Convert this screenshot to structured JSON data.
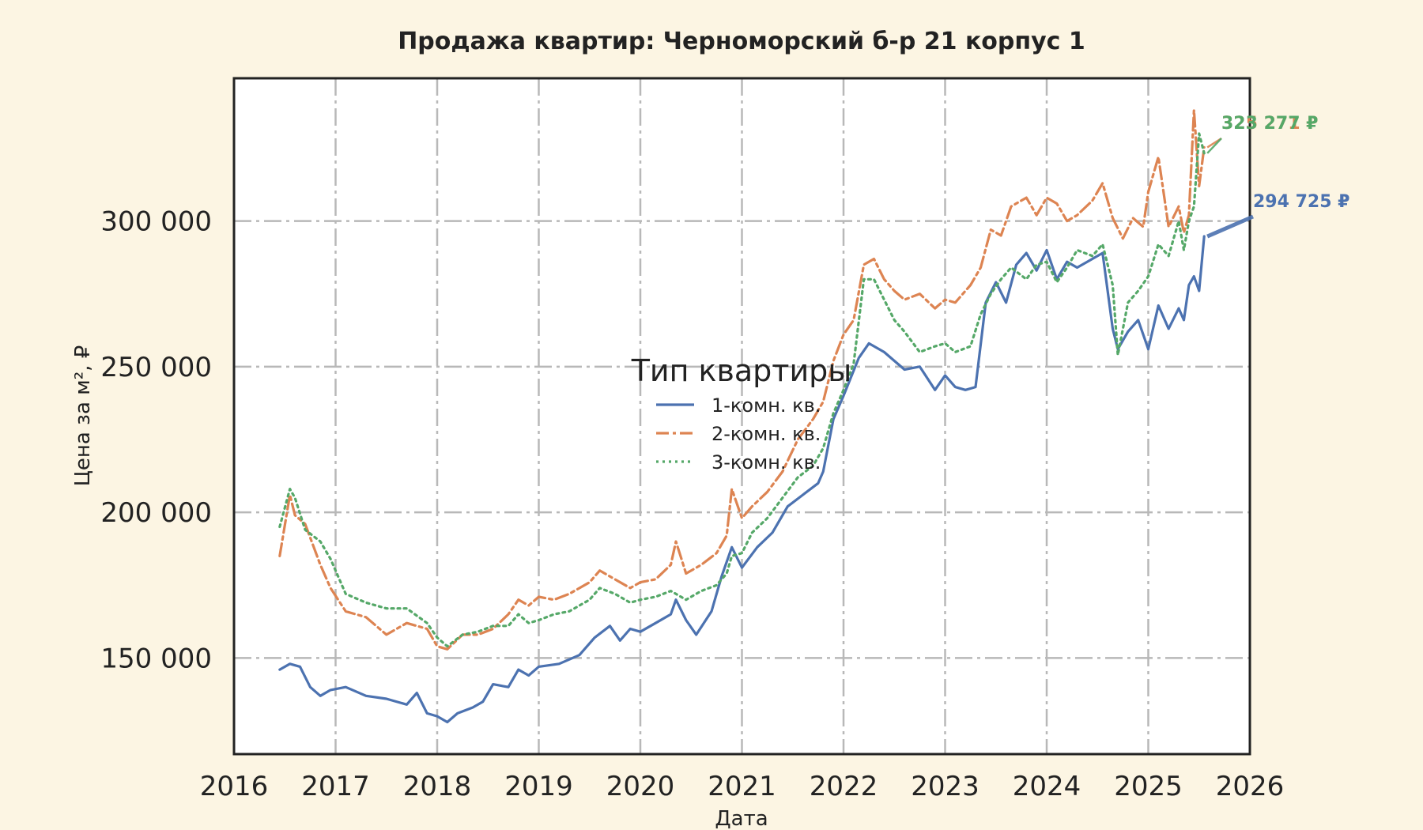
{
  "chart_data": {
    "type": "line",
    "title": "Продажа квартир: Черноморский б-р 21 корпус 1",
    "xlabel": "Дата",
    "ylabel": "Цена за м², ₽",
    "x_ticks": [
      "2016",
      "2017",
      "2018",
      "2019",
      "2020",
      "2021",
      "2022",
      "2023",
      "2024",
      "2025",
      "2026"
    ],
    "y_ticks": [
      "150 000",
      "200 000",
      "250 000",
      "300 000"
    ],
    "xlim": [
      2016,
      2026
    ],
    "ylim": [
      117000,
      349000
    ],
    "grid": true,
    "legend": {
      "title": "Тип квартиры",
      "placement": "center",
      "entries": [
        "1-комн. кв.",
        "2-комн. кв.",
        "3-комн. кв."
      ]
    },
    "series": [
      {
        "name": "1-комн. кв.",
        "color": "#4c72b0",
        "dash": "solid",
        "end_label": "294 725 ₽",
        "x": [
          2016.45,
          2016.55,
          2016.65,
          2016.75,
          2016.85,
          2016.95,
          2017.1,
          2017.3,
          2017.5,
          2017.7,
          2017.8,
          2017.9,
          2018.0,
          2018.1,
          2018.2,
          2018.35,
          2018.45,
          2018.55,
          2018.7,
          2018.8,
          2018.9,
          2019.0,
          2019.2,
          2019.4,
          2019.55,
          2019.7,
          2019.8,
          2019.9,
          2020.0,
          2020.15,
          2020.3,
          2020.35,
          2020.45,
          2020.55,
          2020.7,
          2020.8,
          2020.9,
          2021.0,
          2021.15,
          2021.3,
          2021.45,
          2021.6,
          2021.75,
          2021.8,
          2021.9,
          2022.0,
          2022.15,
          2022.25,
          2022.4,
          2022.5,
          2022.6,
          2022.75,
          2022.9,
          2023.0,
          2023.1,
          2023.2,
          2023.3,
          2023.4,
          2023.5,
          2023.6,
          2023.7,
          2023.8,
          2023.9,
          2024.0,
          2024.1,
          2024.2,
          2024.3,
          2024.45,
          2024.55,
          2024.65,
          2024.7,
          2024.8,
          2024.9,
          2025.0,
          2025.1,
          2025.2,
          2025.3,
          2025.35,
          2025.4,
          2025.45,
          2025.5,
          2025.55
        ],
        "y": [
          146000,
          148000,
          147000,
          140000,
          137000,
          139000,
          140000,
          137000,
          136000,
          134000,
          138000,
          131000,
          130000,
          128000,
          131000,
          133000,
          135000,
          141000,
          140000,
          146000,
          144000,
          147000,
          148000,
          151000,
          157000,
          161000,
          156000,
          160000,
          159000,
          162000,
          165000,
          170000,
          163000,
          158000,
          166000,
          178000,
          188000,
          181000,
          188000,
          193000,
          202000,
          206000,
          210000,
          214000,
          232000,
          240000,
          253000,
          258000,
          255000,
          252000,
          249000,
          250000,
          242000,
          247000,
          243000,
          242000,
          243000,
          272000,
          279000,
          272000,
          285000,
          289000,
          283000,
          290000,
          280000,
          286000,
          284000,
          287000,
          289000,
          263000,
          256000,
          262000,
          266000,
          256000,
          271000,
          263000,
          270000,
          266000,
          278000,
          281000,
          276000,
          294725
        ]
      },
      {
        "name": "2-комн. кв.",
        "color": "#dd8452",
        "dash": "dashdot",
        "end_label": "325 271 ₽",
        "x": [
          2016.45,
          2016.55,
          2016.6,
          2016.7,
          2016.85,
          2016.95,
          2017.1,
          2017.3,
          2017.5,
          2017.7,
          2017.9,
          2018.0,
          2018.1,
          2018.25,
          2018.4,
          2018.55,
          2018.7,
          2018.8,
          2018.9,
          2019.0,
          2019.15,
          2019.3,
          2019.5,
          2019.6,
          2019.75,
          2019.9,
          2020.0,
          2020.15,
          2020.3,
          2020.35,
          2020.45,
          2020.6,
          2020.75,
          2020.85,
          2020.9,
          2021.0,
          2021.1,
          2021.25,
          2021.4,
          2021.55,
          2021.7,
          2021.8,
          2021.9,
          2022.0,
          2022.1,
          2022.2,
          2022.3,
          2022.4,
          2022.5,
          2022.6,
          2022.75,
          2022.9,
          2023.0,
          2023.1,
          2023.25,
          2023.35,
          2023.45,
          2023.55,
          2023.65,
          2023.8,
          2023.9,
          2024.0,
          2024.1,
          2024.2,
          2024.3,
          2024.45,
          2024.55,
          2024.65,
          2024.75,
          2024.85,
          2024.95,
          2025.0,
          2025.1,
          2025.2,
          2025.3,
          2025.35,
          2025.4,
          2025.45,
          2025.5,
          2025.55
        ],
        "y": [
          185000,
          206000,
          199000,
          196000,
          182000,
          174000,
          166000,
          164000,
          158000,
          162000,
          160000,
          154000,
          153000,
          158000,
          158000,
          160000,
          165000,
          170000,
          168000,
          171000,
          170000,
          172000,
          176000,
          180000,
          177000,
          174000,
          176000,
          177000,
          182000,
          190000,
          179000,
          182000,
          186000,
          192000,
          208000,
          198000,
          202000,
          207000,
          214000,
          225000,
          232000,
          238000,
          252000,
          261000,
          266000,
          285000,
          287000,
          280000,
          276000,
          273000,
          275000,
          270000,
          273000,
          272000,
          278000,
          284000,
          297000,
          295000,
          305000,
          308000,
          302000,
          308000,
          306000,
          300000,
          302000,
          307000,
          313000,
          301000,
          294000,
          301000,
          298000,
          310000,
          322000,
          298000,
          305000,
          296000,
          302000,
          338000,
          312000,
          325271
        ]
      },
      {
        "name": "3-комн. кв.",
        "color": "#55a868",
        "dash": "dotted",
        "end_label": "323 277 ₽",
        "x": [
          2016.45,
          2016.55,
          2016.6,
          2016.7,
          2016.85,
          2016.95,
          2017.1,
          2017.3,
          2017.5,
          2017.7,
          2017.9,
          2018.0,
          2018.1,
          2018.25,
          2018.4,
          2018.55,
          2018.7,
          2018.8,
          2018.9,
          2019.0,
          2019.15,
          2019.3,
          2019.5,
          2019.6,
          2019.75,
          2019.9,
          2020.0,
          2020.15,
          2020.3,
          2020.45,
          2020.6,
          2020.75,
          2020.85,
          2020.9,
          2021.0,
          2021.1,
          2021.25,
          2021.4,
          2021.55,
          2021.7,
          2021.8,
          2021.9,
          2022.0,
          2022.1,
          2022.2,
          2022.3,
          2022.4,
          2022.5,
          2022.6,
          2022.75,
          2022.9,
          2023.0,
          2023.1,
          2023.25,
          2023.35,
          2023.45,
          2023.55,
          2023.65,
          2023.8,
          2023.9,
          2024.0,
          2024.1,
          2024.2,
          2024.3,
          2024.45,
          2024.55,
          2024.65,
          2024.7,
          2024.8,
          2024.9,
          2025.0,
          2025.1,
          2025.2,
          2025.3,
          2025.35,
          2025.4,
          2025.45,
          2025.5,
          2025.55
        ],
        "y": [
          195000,
          208000,
          205000,
          194000,
          190000,
          184000,
          172000,
          169000,
          167000,
          167000,
          162000,
          157000,
          154000,
          158000,
          159000,
          161000,
          161000,
          165000,
          162000,
          163000,
          165000,
          166000,
          170000,
          174000,
          172000,
          169000,
          170000,
          171000,
          173000,
          170000,
          173000,
          175000,
          179000,
          185000,
          186000,
          193000,
          198000,
          205000,
          212000,
          216000,
          222000,
          234000,
          242000,
          251000,
          280000,
          280000,
          273000,
          266000,
          262000,
          255000,
          257000,
          258000,
          255000,
          257000,
          268000,
          275000,
          280000,
          284000,
          280000,
          285000,
          286000,
          279000,
          284000,
          290000,
          288000,
          292000,
          278000,
          254000,
          272000,
          276000,
          281000,
          292000,
          288000,
          300000,
          290000,
          300000,
          305000,
          330000,
          323277
        ]
      }
    ]
  }
}
